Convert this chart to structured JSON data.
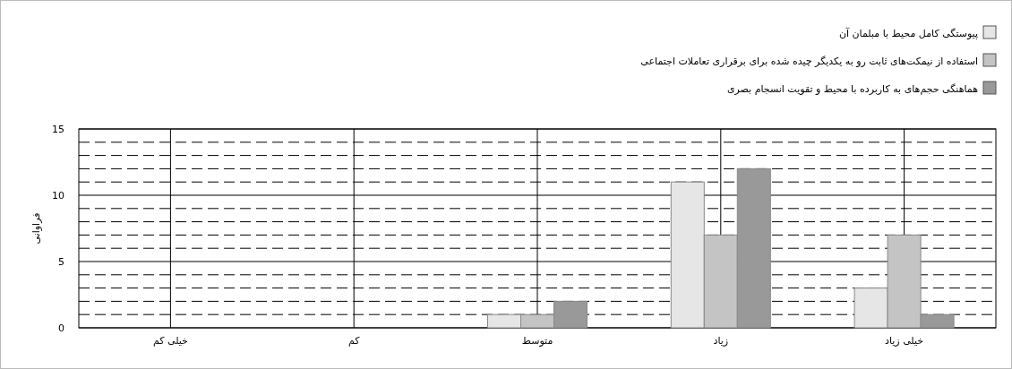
{
  "chart_data": {
    "type": "bar",
    "ylabel": "فراوانی",
    "categories": [
      "خیلی کم",
      "کم",
      "متوسط",
      "زیاد",
      "خیلی زیاد"
    ],
    "series": [
      {
        "name": "پیوستگی کامل محیط با مبلمان آن",
        "color": "#e6e6e6",
        "values": [
          0,
          0,
          1,
          11,
          3
        ]
      },
      {
        "name": "استفاده از نیمکت‌های ثابت رو به یکدیگر چیده شده برای برقراری تعاملات اجتماعی",
        "color": "#c4c4c4",
        "values": [
          0,
          0,
          1,
          7,
          7
        ]
      },
      {
        "name": "هماهنگی حجم‌های به کاربرده با محیط و تقویت انسجام بصری",
        "color": "#999999",
        "values": [
          0,
          0,
          2,
          12,
          1
        ]
      }
    ],
    "ylim": [
      0,
      15
    ],
    "yticks": [
      0,
      5,
      10,
      15
    ],
    "grid": true,
    "legend": "top right"
  }
}
